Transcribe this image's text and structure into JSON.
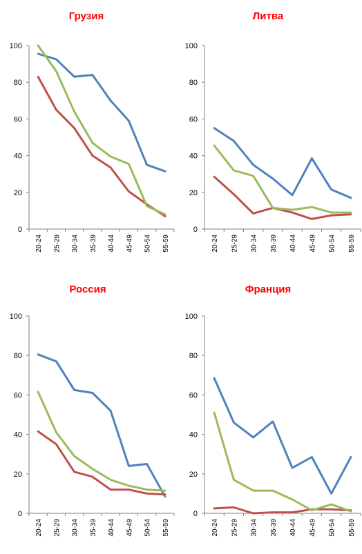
{
  "series_colors": {
    "blue": "#4f81bd",
    "red": "#c0504d",
    "green": "#9bbb59"
  },
  "chart_data": [
    {
      "type": "line",
      "title": "Грузия",
      "categories": [
        "20-24",
        "25-29",
        "30-34",
        "35-39",
        "40-44",
        "45-49",
        "50-54",
        "55-59"
      ],
      "ylim": [
        0,
        100
      ],
      "yticks": [
        0,
        20,
        40,
        60,
        80,
        100
      ],
      "grid": false,
      "series": [
        {
          "color": "#4f81bd",
          "values": [
            95.5,
            92.5,
            83,
            84,
            70,
            59,
            35,
            31.5
          ]
        },
        {
          "color": "#c0504d",
          "values": [
            83,
            65,
            55,
            40,
            33.5,
            20.5,
            13.5,
            7
          ]
        },
        {
          "color": "#9bbb59",
          "values": [
            100,
            86,
            64,
            47,
            39.5,
            35.5,
            12.5,
            8
          ]
        }
      ]
    },
    {
      "type": "line",
      "title": "Литва",
      "categories": [
        "20-24",
        "25-29",
        "30-34",
        "35-39",
        "40-44",
        "45-49",
        "50-54",
        "55-59"
      ],
      "ylim": [
        0,
        100
      ],
      "yticks": [
        0,
        20,
        40,
        60,
        80,
        100
      ],
      "grid": false,
      "series": [
        {
          "color": "#4f81bd",
          "values": [
            55,
            48,
            35,
            27.5,
            18.5,
            38.5,
            21.5,
            17
          ]
        },
        {
          "color": "#c0504d",
          "values": [
            28.5,
            19,
            8.5,
            11.5,
            9,
            5.5,
            7.5,
            8
          ]
        },
        {
          "color": "#9bbb59",
          "values": [
            45.5,
            32,
            29,
            11.5,
            10.5,
            12,
            9,
            9
          ]
        }
      ]
    },
    {
      "type": "line",
      "title": "Россия",
      "categories": [
        "20-24",
        "25-29",
        "30-34",
        "35-39",
        "40-44",
        "45-49",
        "50-54",
        "55-59"
      ],
      "ylim": [
        0,
        100
      ],
      "yticks": [
        0,
        20,
        40,
        60,
        80,
        100
      ],
      "grid": false,
      "series": [
        {
          "color": "#4f81bd",
          "values": [
            80.5,
            77,
            62.5,
            61,
            52,
            24,
            25,
            8.5
          ]
        },
        {
          "color": "#c0504d",
          "values": [
            41.5,
            35,
            21,
            18.5,
            12,
            12,
            10,
            9.5
          ]
        },
        {
          "color": "#9bbb59",
          "values": [
            61.5,
            41,
            29,
            22.5,
            17,
            14,
            12,
            11.5
          ]
        }
      ]
    },
    {
      "type": "line",
      "title": "Франция",
      "categories": [
        "20-24",
        "25-29",
        "30-34",
        "35-39",
        "40-44",
        "45-49",
        "50-54",
        "55-59"
      ],
      "ylim": [
        0,
        100
      ],
      "yticks": [
        0,
        20,
        40,
        60,
        80,
        100
      ],
      "grid": false,
      "series": [
        {
          "color": "#4f81bd",
          "values": [
            68.5,
            46,
            38.5,
            46.5,
            23,
            28.5,
            10,
            28.5
          ]
        },
        {
          "color": "#c0504d",
          "values": [
            2.5,
            3,
            0,
            0.5,
            0.5,
            2,
            2,
            1.5
          ]
        },
        {
          "color": "#9bbb59",
          "values": [
            51,
            17,
            11.5,
            11.5,
            7,
            1.5,
            4.5,
            1
          ]
        }
      ]
    }
  ]
}
